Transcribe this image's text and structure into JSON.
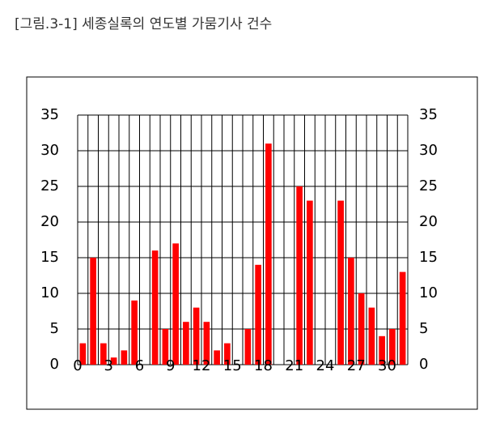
{
  "chart_data": {
    "type": "bar",
    "title": "[그림.3-1] 세종실록의 연도별 가뭄기사 건수",
    "x": [
      0,
      1,
      2,
      3,
      4,
      5,
      6,
      7,
      8,
      9,
      10,
      11,
      12,
      13,
      14,
      15,
      16,
      17,
      18,
      19,
      20,
      21,
      22,
      23,
      24,
      25,
      26,
      27,
      28,
      29,
      30,
      31
    ],
    "values": [
      3,
      15,
      3,
      1,
      2,
      9,
      0,
      16,
      5,
      17,
      6,
      8,
      6,
      2,
      3,
      0,
      5,
      14,
      31,
      0,
      0,
      25,
      23,
      0,
      0,
      23,
      15,
      10,
      8,
      4,
      5,
      13
    ],
    "color": "#ff0000",
    "xlim": [
      0,
      32
    ],
    "xticks": [
      0,
      3,
      6,
      9,
      12,
      15,
      18,
      21,
      24,
      27,
      30
    ],
    "ylim": [
      0,
      35
    ],
    "yticks": [
      0,
      5,
      10,
      15,
      20,
      25,
      30,
      35
    ],
    "y2lim": [
      0,
      35
    ],
    "y2ticks": [
      0,
      5,
      10,
      15,
      20,
      25,
      30,
      35
    ],
    "grid": true
  }
}
